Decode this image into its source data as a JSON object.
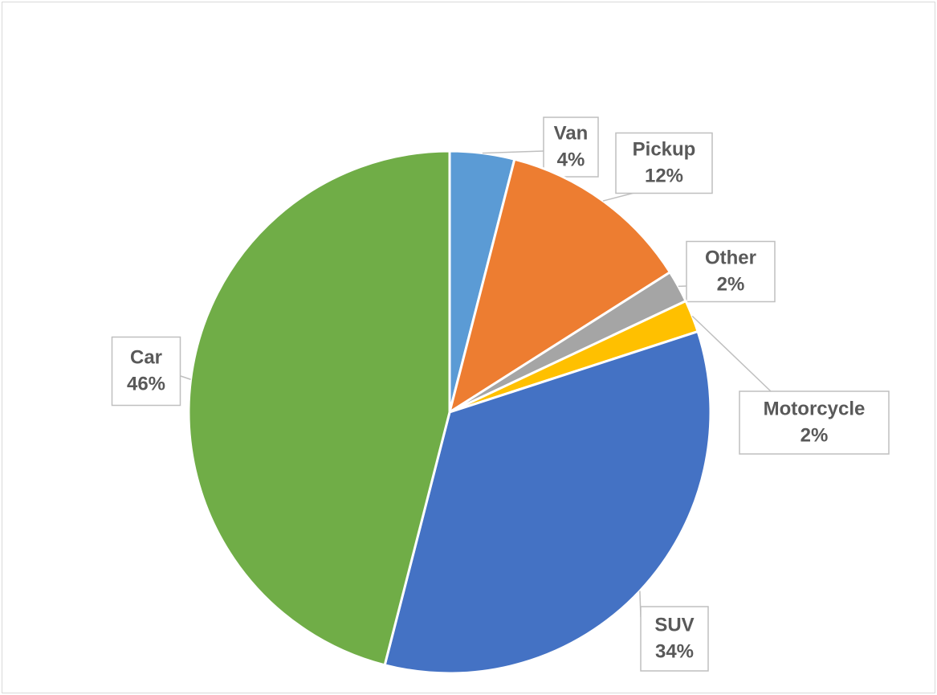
{
  "chart_data": {
    "type": "pie",
    "categories": [
      "Van",
      "Pickup",
      "Other",
      "Motorcycle",
      "SUV",
      "Car"
    ],
    "values": [
      4,
      12,
      2,
      2,
      34,
      46
    ],
    "value_labels": [
      "4%",
      "12%",
      "2%",
      "2%",
      "34%",
      "46%"
    ],
    "colors": [
      "#5b9bd5",
      "#ed7d31",
      "#a5a5a5",
      "#ffc000",
      "#4472c4",
      "#70ad47"
    ]
  }
}
